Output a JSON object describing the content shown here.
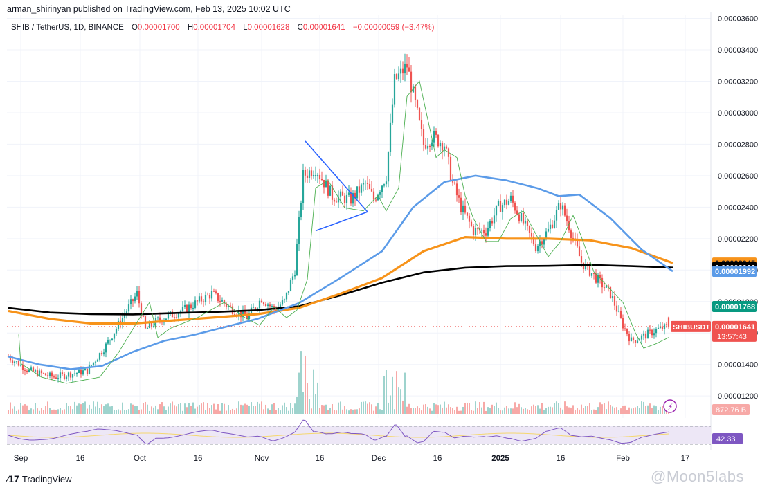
{
  "header": {
    "publisher": "arman_shirinyan published on TradingView.com, Feb 13, 2025 10:02 UTC"
  },
  "legend": {
    "symbol": "SHIB / TetherUS, 1D, BINANCE",
    "o_key": "O",
    "o_val": "0.00001700",
    "h_key": "H",
    "h_val": "0.00001704",
    "l_key": "L",
    "l_val": "0.00001628",
    "c_key": "C",
    "c_val": "0.00001641",
    "change": "−0.00000059 (−3.47%)"
  },
  "footer": {
    "brand": "TradingView",
    "watermark": "@Moon5labs"
  },
  "colors": {
    "up": "#26a69a",
    "down": "#ef5350",
    "ma_black": "#000000",
    "ma_orange": "#f7931a",
    "ma_blue": "#5b9be8",
    "ma_green": "#4caf50",
    "triangle": "#2962ff",
    "rsi": "#7e57c2",
    "rsi_ma": "#f5d76e"
  },
  "chart_data": {
    "type": "candlestick",
    "title": "SHIB / TetherUS, 1D, BINANCE",
    "y_ticks": [
      "0.00001200",
      "0.00001400",
      "0.00001600",
      "0.00001800",
      "0.00002000",
      "0.00002200",
      "0.00002400",
      "0.00002600",
      "0.00002800",
      "0.00003000",
      "0.00003200",
      "0.00003400",
      "0.00003600"
    ],
    "ylim": [
      1.06e-05,
      3.62e-05
    ],
    "x_ticks": [
      "Sep",
      "16",
      "Oct",
      "16",
      "Nov",
      "16",
      "Dec",
      "16",
      "2025",
      "16",
      "Feb",
      "17"
    ],
    "price_labels": [
      {
        "text": "0.00002045",
        "value": 2.045e-05,
        "color": "#f7931a",
        "fg": "#131722"
      },
      {
        "text": "0.00002016",
        "value": 2.016e-05,
        "color": "#000000",
        "fg": "#ffffff"
      },
      {
        "text": "0.00001992",
        "value": 1.992e-05,
        "color": "#5b9be8",
        "fg": "#ffffff"
      },
      {
        "text": "0.00001768",
        "value": 1.768e-05,
        "color": "#089981",
        "fg": "#ffffff"
      }
    ],
    "current": {
      "ticker": "SHIBUSDT",
      "price": "0.00001641",
      "countdown": "13:57:43",
      "value": 1.641e-05
    },
    "volume_label": "872.76 B",
    "rsi_value": "42.33",
    "series": [
      {
        "name": "MA black",
        "points": [
          [
            0,
            1.76e-05
          ],
          [
            20,
            1.73e-05
          ],
          [
            40,
            1.72e-05
          ],
          [
            60,
            1.718e-05
          ],
          [
            80,
            1.727e-05
          ],
          [
            100,
            1.734e-05
          ],
          [
            120,
            1.745e-05
          ],
          [
            140,
            1.77e-05
          ],
          [
            160,
            1.84e-05
          ],
          [
            180,
            1.92e-05
          ],
          [
            200,
            1.985e-05
          ],
          [
            220,
            2.015e-05
          ],
          [
            240,
            2.025e-05
          ],
          [
            260,
            2.027e-05
          ],
          [
            280,
            2.033e-05
          ],
          [
            300,
            2.025e-05
          ],
          [
            320,
            2.016e-05
          ]
        ]
      },
      {
        "name": "MA orange",
        "points": [
          [
            0,
            1.74e-05
          ],
          [
            20,
            1.69e-05
          ],
          [
            40,
            1.66e-05
          ],
          [
            60,
            1.66e-05
          ],
          [
            80,
            1.68e-05
          ],
          [
            100,
            1.7e-05
          ],
          [
            120,
            1.72e-05
          ],
          [
            140,
            1.76e-05
          ],
          [
            160,
            1.85e-05
          ],
          [
            180,
            1.95e-05
          ],
          [
            200,
            2.12e-05
          ],
          [
            220,
            2.21e-05
          ],
          [
            240,
            2.2e-05
          ],
          [
            260,
            2.2e-05
          ],
          [
            280,
            2.19e-05
          ],
          [
            300,
            2.14e-05
          ],
          [
            320,
            2.045e-05
          ]
        ]
      },
      {
        "name": "MA blue",
        "points": [
          [
            0,
            1.45e-05
          ],
          [
            15,
            1.4e-05
          ],
          [
            30,
            1.37e-05
          ],
          [
            45,
            1.39e-05
          ],
          [
            60,
            1.48e-05
          ],
          [
            75,
            1.55e-05
          ],
          [
            90,
            1.59e-05
          ],
          [
            105,
            1.64e-05
          ],
          [
            120,
            1.69e-05
          ],
          [
            140,
            1.79e-05
          ],
          [
            160,
            1.95e-05
          ],
          [
            180,
            2.12e-05
          ],
          [
            195,
            2.4e-05
          ],
          [
            210,
            2.56e-05
          ],
          [
            225,
            2.6e-05
          ],
          [
            240,
            2.57e-05
          ],
          [
            255,
            2.52e-05
          ],
          [
            265,
            2.47e-05
          ],
          [
            275,
            2.48e-05
          ],
          [
            290,
            2.33e-05
          ],
          [
            305,
            2.13e-05
          ],
          [
            320,
            1.992e-05
          ]
        ]
      }
    ]
  }
}
